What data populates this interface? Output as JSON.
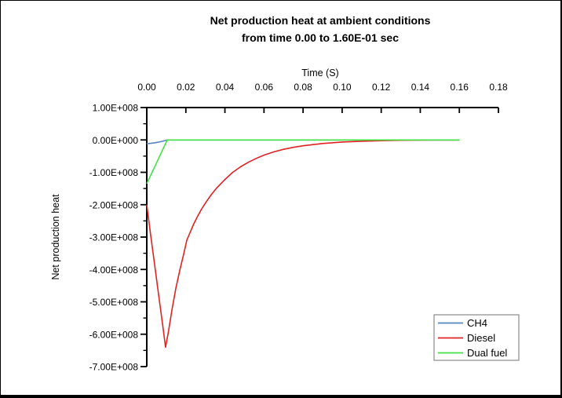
{
  "chart_data": {
    "type": "line",
    "title": "Net production heat at ambient conditions from time 0.00 to 1.60E-01 sec",
    "title_lines": [
      "Net production heat at ambient conditions",
      "from time 0.00 to 1.60E-01 sec"
    ],
    "xlabel": "Time (S)",
    "ylabel": "Net production heat",
    "x_axis": {
      "position": "top",
      "min": 0,
      "max": 0.18,
      "ticks": [
        0.0,
        0.02,
        0.04,
        0.06,
        0.08,
        0.1,
        0.12,
        0.14,
        0.16,
        0.18
      ],
      "tick_labels": [
        "0.00",
        "0.02",
        "0.04",
        "0.06",
        "0.08",
        "0.10",
        "0.12",
        "0.14",
        "0.16",
        "0.18"
      ]
    },
    "y_axis": {
      "position": "left",
      "min": -700000000.0,
      "max": 100000000.0,
      "ticks": [
        100000000.0,
        0,
        -100000000.0,
        -200000000.0,
        -300000000.0,
        -400000000.0,
        -500000000.0,
        -600000000.0,
        -700000000.0
      ],
      "tick_labels": [
        "1.00E+008",
        "0.00E+000",
        "-1.00E+008",
        "-2.00E+008",
        "-3.00E+008",
        "-4.00E+008",
        "-5.00E+008",
        "-6.00E+008",
        "-7.00E+008"
      ],
      "minor_ticks_per_interval": 1
    },
    "grid": false,
    "legend": {
      "position": "bottom-right",
      "border_color": "#8a8a8a"
    },
    "colors": {
      "axis": "#000000",
      "background": "#ffffff"
    },
    "series": [
      {
        "name": "CH4",
        "color": "#5585bd",
        "points": [
          [
            0,
            -12000000.0
          ],
          [
            0.002,
            -10500000.0
          ],
          [
            0.004,
            -8800000.0
          ],
          [
            0.006,
            -6800000.0
          ],
          [
            0.008,
            -4200000.0
          ],
          [
            0.01,
            -900000.0
          ],
          [
            0.0105,
            0
          ],
          [
            0.02,
            0
          ],
          [
            0.04,
            0
          ],
          [
            0.06,
            0
          ],
          [
            0.08,
            0
          ],
          [
            0.1,
            0
          ],
          [
            0.12,
            0
          ],
          [
            0.14,
            0
          ],
          [
            0.16,
            0
          ]
        ]
      },
      {
        "name": "Diesel",
        "color": "#e02222",
        "points": [
          [
            0,
            -200000000.0
          ],
          [
            0.002,
            -295000000.0
          ],
          [
            0.004,
            -385000000.0
          ],
          [
            0.006,
            -475000000.0
          ],
          [
            0.008,
            -565000000.0
          ],
          [
            0.0096,
            -640000000.0
          ],
          [
            0.011,
            -595000000.0
          ],
          [
            0.013,
            -520000000.0
          ],
          [
            0.015,
            -455000000.0
          ],
          [
            0.017,
            -400000000.0
          ],
          [
            0.019,
            -350000000.0
          ],
          [
            0.0205,
            -310000000.0
          ],
          [
            0.022,
            -288000000.0
          ],
          [
            0.024,
            -260000000.0
          ],
          [
            0.026,
            -236000000.0
          ],
          [
            0.028,
            -214000000.0
          ],
          [
            0.03,
            -195000000.0
          ],
          [
            0.033,
            -169000000.0
          ],
          [
            0.036,
            -147000000.0
          ],
          [
            0.04,
            -122000000.0
          ],
          [
            0.044,
            -100000000.0
          ],
          [
            0.048,
            -83000000.0
          ],
          [
            0.052,
            -69000000.0
          ],
          [
            0.056,
            -57000000.0
          ],
          [
            0.06,
            -47000000.0
          ],
          [
            0.065,
            -37000000.0
          ],
          [
            0.07,
            -29000000.0
          ],
          [
            0.075,
            -23000000.0
          ],
          [
            0.08,
            -18000000.0
          ],
          [
            0.09,
            -11000000.0
          ],
          [
            0.1,
            -6500000.0
          ],
          [
            0.11,
            -4000000.0
          ],
          [
            0.12,
            -2200000.0
          ],
          [
            0.13,
            -1200000.0
          ],
          [
            0.14,
            -600000.0
          ],
          [
            0.15,
            -200000.0
          ],
          [
            0.16,
            0
          ]
        ]
      },
      {
        "name": "Dual fuel",
        "color": "#44e244",
        "points": [
          [
            0,
            -135000000.0
          ],
          [
            0.0105,
            0
          ],
          [
            0.02,
            0
          ],
          [
            0.04,
            0
          ],
          [
            0.06,
            0
          ],
          [
            0.08,
            0
          ],
          [
            0.1,
            0
          ],
          [
            0.12,
            0
          ],
          [
            0.14,
            0
          ],
          [
            0.16,
            0
          ]
        ]
      }
    ]
  }
}
